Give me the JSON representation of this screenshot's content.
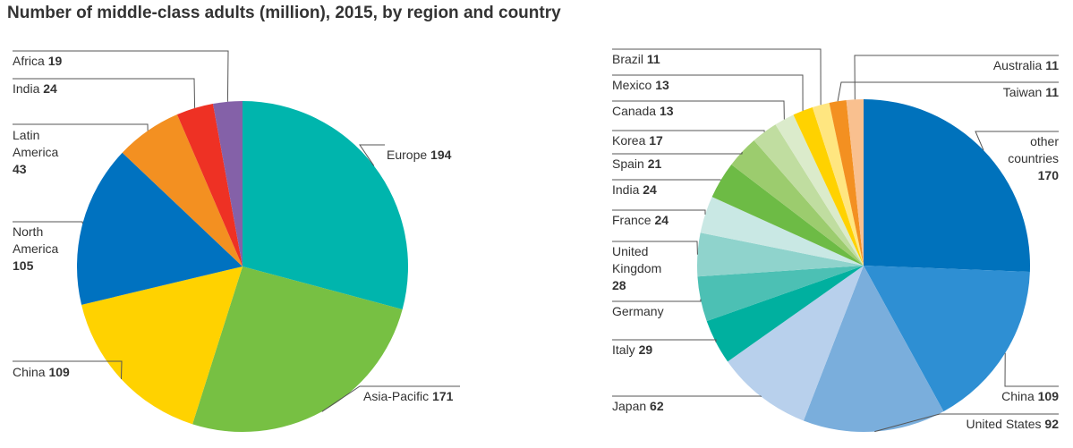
{
  "title": "Number of middle-class adults (million), 2015, by region and country",
  "chart_data": [
    {
      "type": "pie",
      "categories": [
        "Europe",
        "Asia-Pacific",
        "China",
        "North America",
        "Latin America",
        "India",
        "Africa"
      ],
      "values": [
        194,
        171,
        109,
        105,
        43,
        24,
        19
      ],
      "colors": [
        "#00b5ad",
        "#77c043",
        "#ffd200",
        "#0072c0",
        "#f39021",
        "#ee3124",
        "#8461a8"
      ]
    },
    {
      "type": "pie",
      "categories": [
        "other countries",
        "China",
        "United States",
        "Japan",
        "Italy",
        "Germany",
        "United Kingdom",
        "France",
        "India",
        "Spain",
        "Korea",
        "Canada",
        "Mexico",
        "Brazil",
        "Taiwan",
        "Australia"
      ],
      "values": [
        170,
        109,
        92,
        62,
        29,
        29,
        28,
        24,
        24,
        21,
        17,
        13,
        13,
        11,
        11,
        11
      ],
      "value_labels": [
        "170",
        "109",
        "92",
        "62",
        "29",
        null,
        "28",
        "24",
        "24",
        "21",
        "17",
        "13",
        "13",
        "11",
        "11",
        "11"
      ],
      "colors": [
        "#0072bc",
        "#2e8fd3",
        "#7aaedc",
        "#b8d0ec",
        "#00b09f",
        "#4cc0b4",
        "#8fd3cc",
        "#c9e8e4",
        "#6dbb45",
        "#9ccc6e",
        "#c0dda0",
        "#dbebcb",
        "#ffd200",
        "#ffe680",
        "#f39021",
        "#f9c08f"
      ]
    }
  ]
}
